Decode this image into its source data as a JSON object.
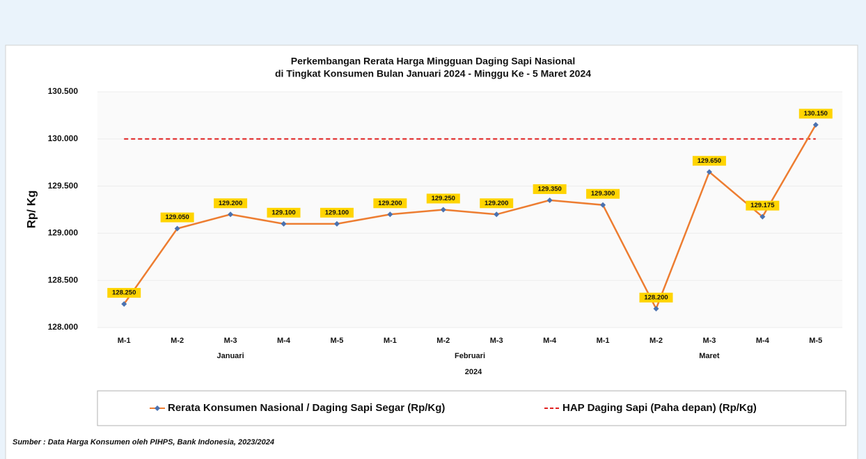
{
  "chart_data": {
    "type": "line",
    "title": "Perkembangan Rerata Harga Mingguan Daging Sapi Nasional",
    "subtitle": "di Tingkat Konsumen Bulan Januari 2024 - Minggu Ke - 5 Maret 2024",
    "y_label": "Rp/ Kg",
    "categories": [
      "M-1",
      "M-2",
      "M-3",
      "M-4",
      "M-5",
      "M-1",
      "M-2",
      "M-3",
      "M-4",
      "M-1",
      "M-2",
      "M-3",
      "M-4",
      "M-5"
    ],
    "x_groups": [
      {
        "label": "Januari",
        "span": 5
      },
      {
        "label": "Februari",
        "span": 4
      },
      {
        "label": "Maret",
        "span": 5
      }
    ],
    "x_super_label": "2024",
    "series": [
      {
        "name": "Rerata Konsumen Nasional / Daging Sapi Segar (Rp/Kg)",
        "color": "#ed7d31",
        "marker_color": "#4a72b0",
        "values": [
          128250,
          129050,
          129200,
          129100,
          129100,
          129200,
          129250,
          129200,
          129350,
          129300,
          128200,
          129650,
          129175,
          130150
        ],
        "value_labels": [
          "128.250",
          "129.050",
          "129.200",
          "129.100",
          "129.100",
          "129.200",
          "129.250",
          "129.200",
          "129.350",
          "129.300",
          "128.200",
          "129.650",
          "129.175",
          "130.150"
        ]
      },
      {
        "name": "HAP Daging Sapi (Paha depan)  (Rp/Kg)",
        "color": "#e02020",
        "dashed": true,
        "values": [
          130000,
          130000,
          130000,
          130000,
          130000,
          130000,
          130000,
          130000,
          130000,
          130000,
          130000,
          130000,
          130000,
          130000
        ]
      }
    ],
    "ylim": [
      128000,
      130500
    ],
    "yticks": [
      {
        "value": 128000,
        "label": "128.000"
      },
      {
        "value": 128500,
        "label": "128.500"
      },
      {
        "value": 129000,
        "label": "129.000"
      },
      {
        "value": 129500,
        "label": "129.500"
      },
      {
        "value": 130000,
        "label": "130.000"
      },
      {
        "value": 130500,
        "label": "130.500"
      }
    ],
    "grid": true,
    "source": "Sumber : Data Harga Konsumen oleh PIHPS, Bank Indonesia, 2023/2024"
  }
}
